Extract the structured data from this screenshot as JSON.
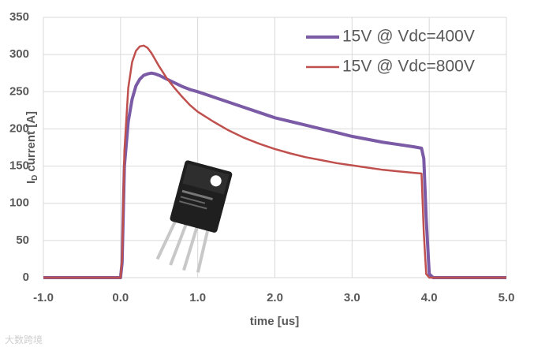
{
  "chart_data": {
    "type": "line",
    "xlabel": "time [us]",
    "ylabel": [
      "I",
      "D",
      "current [A]"
    ],
    "watermark": "大数跨境",
    "x": [
      -1.0,
      0.0,
      0.02,
      0.05,
      0.1,
      0.15,
      0.2,
      0.25,
      0.3,
      0.35,
      0.4,
      0.45,
      0.5,
      0.6,
      0.7,
      0.8,
      0.9,
      1.0,
      1.2,
      1.4,
      1.6,
      1.8,
      2.0,
      2.2,
      2.4,
      2.6,
      2.8,
      3.0,
      3.2,
      3.4,
      3.6,
      3.8,
      3.9,
      3.93,
      3.96,
      4.0,
      4.05,
      5.0
    ],
    "series": [
      {
        "name": "15V @ Vdc=400V",
        "color": "#7b5aa6",
        "line_width": 4,
        "values": [
          0,
          0,
          20,
          150,
          210,
          240,
          258,
          267,
          272,
          274,
          275,
          274,
          272,
          267,
          262,
          257,
          253,
          250,
          243,
          236,
          229,
          222,
          215,
          210,
          205,
          200,
          195,
          190,
          186,
          182,
          179,
          176,
          174,
          160,
          80,
          5,
          0,
          0
        ]
      },
      {
        "name": "15V @ Vdc=800V",
        "color": "#c0504d",
        "line_width": 2.5,
        "values": [
          0,
          0,
          25,
          170,
          255,
          290,
          305,
          311,
          312,
          309,
          302,
          293,
          284,
          268,
          255,
          243,
          232,
          223,
          210,
          198,
          188,
          180,
          173,
          167,
          162,
          158,
          154,
          151,
          148,
          145,
          143,
          141,
          140,
          60,
          5,
          0,
          0,
          0
        ]
      }
    ],
    "xlim": [
      -1.0,
      5.0
    ],
    "xticks": [
      {
        "value": -1,
        "label": "-1.0"
      },
      {
        "value": 0,
        "label": "0.0"
      },
      {
        "value": 1,
        "label": "1.0"
      },
      {
        "value": 2,
        "label": "2.0"
      },
      {
        "value": 3,
        "label": "3.0"
      },
      {
        "value": 4,
        "label": "4.0"
      },
      {
        "value": 5,
        "label": "5.0"
      }
    ],
    "ylim": [
      0,
      350
    ],
    "yticks": [
      0,
      50,
      100,
      150,
      200,
      250,
      300,
      350
    ],
    "grid": true,
    "legend": "top-right"
  }
}
